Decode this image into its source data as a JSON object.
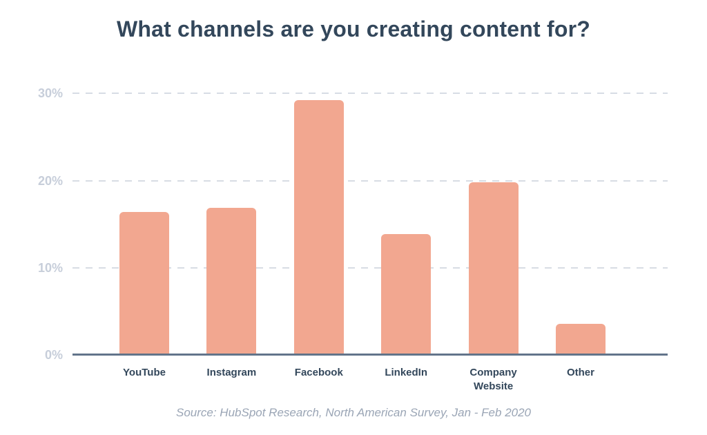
{
  "chart_data": {
    "type": "bar",
    "title": "What channels are you creating content for?",
    "categories": [
      "YouTube",
      "Instagram",
      "Facebook",
      "LinkedIn",
      "Company Website",
      "Other"
    ],
    "values": [
      16.4,
      16.9,
      29.2,
      13.9,
      19.8,
      3.6
    ],
    "unit": "%",
    "yticks": [
      {
        "value": 0,
        "label": "0%"
      },
      {
        "value": 10,
        "label": "10%"
      },
      {
        "value": 20,
        "label": "20%"
      },
      {
        "value": 30,
        "label": "30%"
      }
    ],
    "ylim": [
      0,
      32.8
    ],
    "xlabel": "",
    "ylabel": "",
    "grid": "horizontal-dashed",
    "legend": "none",
    "bar_color": "#F2A790"
  },
  "source": "Source: HubSpot Research, North American Survey, Jan - Feb 2020",
  "colors": {
    "background": "#FFFFFF",
    "title_text": "#33475B",
    "category_text": "#33475B",
    "tick_text": "#C7CEDA",
    "gridline": "#D7DCE4",
    "axis_line": "#62748A",
    "bar": "#F2A790",
    "source_text": "#9AA5B5"
  }
}
